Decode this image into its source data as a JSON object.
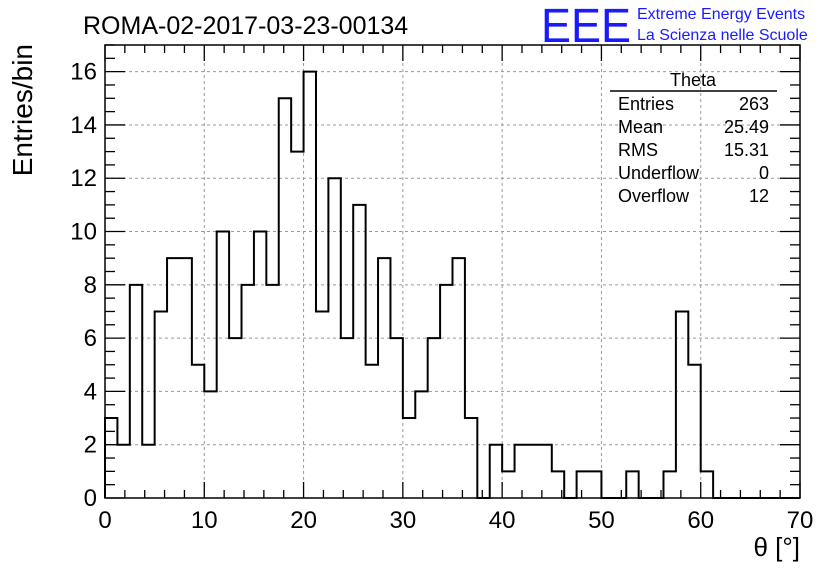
{
  "header": {
    "run_title": "ROMA-02-2017-03-23-00134",
    "logo_text": "EEE",
    "logo_line1": "Extreme Energy Events",
    "logo_line2": "La Scienza nelle Scuole",
    "logo_color": "#1a1aff"
  },
  "stats_box": {
    "title": "Theta",
    "rows": [
      {
        "label": "Entries",
        "value": "263"
      },
      {
        "label": "Mean",
        "value": "25.49"
      },
      {
        "label": "RMS",
        "value": "15.31"
      },
      {
        "label": "Underflow",
        "value": "0"
      },
      {
        "label": "Overflow",
        "value": "12"
      }
    ]
  },
  "chart_data": {
    "type": "histogram",
    "xlabel": "θ [°]",
    "ylabel": "Entries/bin",
    "xlim": [
      0,
      70
    ],
    "ylim": [
      0,
      17
    ],
    "x_ticks": [
      "0",
      "10",
      "20",
      "30",
      "40",
      "50",
      "60",
      "70"
    ],
    "y_ticks": [
      "0",
      "2",
      "4",
      "6",
      "8",
      "10",
      "12",
      "14",
      "16"
    ],
    "grid": true,
    "bin_width": 1.25,
    "values": [
      3,
      2,
      8,
      2,
      7,
      9,
      9,
      5,
      4,
      10,
      6,
      8,
      10,
      8,
      15,
      13,
      16,
      7,
      12,
      6,
      11,
      5,
      9,
      6,
      3,
      4,
      6,
      8,
      9,
      3,
      0,
      2,
      1,
      2,
      2,
      2,
      1,
      0,
      1,
      1,
      0,
      0,
      1,
      0,
      0,
      1,
      7,
      5,
      1,
      0,
      0,
      0,
      0,
      0,
      0,
      0
    ],
    "line_color": "#000000"
  }
}
